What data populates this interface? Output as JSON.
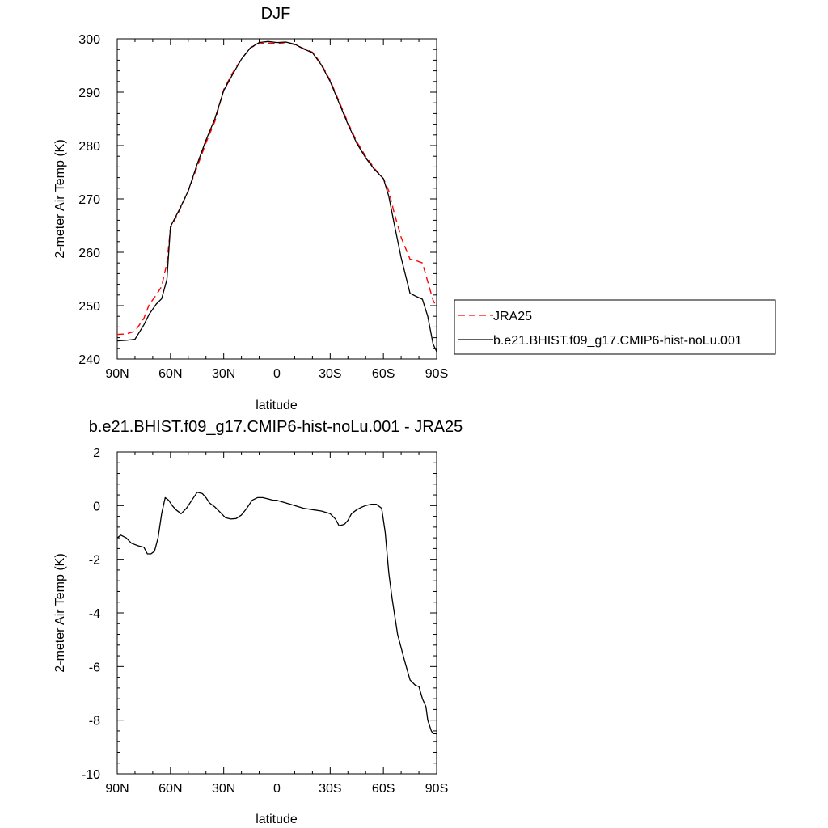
{
  "colors": {
    "model": "#000000",
    "obs": "#ff0000",
    "background": "#ffffff"
  },
  "chart_data": [
    {
      "type": "line",
      "title": "DJF",
      "xlabel": "latitude",
      "ylabel": "2-meter Air Temp (K)",
      "xlim": [
        -90,
        90
      ],
      "ylim": [
        240,
        300
      ],
      "xticks": [
        -90,
        -60,
        -30,
        0,
        30,
        60,
        90
      ],
      "xtick_labels": [
        "90N",
        "60N",
        "30N",
        "0",
        "30S",
        "60S",
        "90S"
      ],
      "yticks": [
        240,
        250,
        260,
        270,
        280,
        290,
        300
      ],
      "ytick_labels": [
        "240",
        "250",
        "260",
        "270",
        "280",
        "290",
        "300"
      ],
      "grid": false,
      "legend_position": "right",
      "series": [
        {
          "name": "JRA25",
          "style": "dashed",
          "color": "#ff0000",
          "x": [
            -90,
            -85,
            -80,
            -75,
            -72,
            -68,
            -65,
            -62,
            -60,
            -55,
            -50,
            -45,
            -40,
            -35,
            -30,
            -25,
            -20,
            -15,
            -10,
            -5,
            0,
            5,
            10,
            15,
            20,
            25,
            30,
            35,
            40,
            45,
            50,
            55,
            60,
            63,
            66,
            70,
            75,
            78,
            82,
            85,
            88,
            90
          ],
          "values": [
            244.6,
            244.7,
            245.2,
            247.6,
            250.2,
            252.0,
            253.6,
            258.0,
            264.5,
            267.8,
            271.5,
            276.0,
            280.5,
            284.5,
            290.5,
            293.6,
            296.2,
            298.3,
            299.1,
            299.2,
            299.1,
            299.3,
            298.9,
            298.2,
            297.5,
            295.3,
            292.2,
            288.3,
            284.3,
            280.7,
            278.0,
            275.7,
            273.8,
            271.5,
            267.5,
            262.8,
            258.7,
            258.5,
            258.0,
            254.5,
            251.0,
            249.8
          ]
        },
        {
          "name": "b.e21.BHIST.f09_g17.CMIP6-hist-noLu.001",
          "style": "solid",
          "color": "#000000",
          "x": [
            -90,
            -85,
            -80,
            -75,
            -72,
            -68,
            -65,
            -62,
            -60,
            -55,
            -50,
            -45,
            -40,
            -35,
            -30,
            -25,
            -20,
            -15,
            -10,
            -5,
            0,
            5,
            10,
            15,
            20,
            25,
            30,
            35,
            40,
            45,
            50,
            55,
            60,
            63,
            66,
            70,
            75,
            78,
            82,
            85,
            88,
            90
          ],
          "values": [
            243.4,
            243.5,
            243.7,
            246.4,
            248.4,
            250.3,
            251.3,
            254.9,
            264.8,
            268.0,
            271.5,
            276.5,
            281.0,
            285.0,
            290.3,
            293.3,
            296.2,
            298.3,
            299.3,
            299.5,
            299.3,
            299.4,
            299.0,
            298.1,
            297.4,
            295.1,
            292.0,
            288.0,
            284.0,
            280.4,
            277.7,
            275.5,
            273.8,
            270.5,
            265.5,
            259.0,
            252.3,
            251.8,
            251.2,
            248.0,
            242.8,
            241.4
          ]
        }
      ]
    },
    {
      "type": "line",
      "title": "b.e21.BHIST.f09_g17.CMIP6-hist-noLu.001 - JRA25",
      "xlabel": "latitude",
      "ylabel": "2-meter Air Temp (K)",
      "xlim": [
        -90,
        90
      ],
      "ylim": [
        -10,
        2
      ],
      "xticks": [
        -90,
        -60,
        -30,
        0,
        30,
        60,
        90
      ],
      "xtick_labels": [
        "90N",
        "60N",
        "30N",
        "0",
        "30S",
        "60S",
        "90S"
      ],
      "yticks": [
        -10,
        -8,
        -6,
        -4,
        -2,
        0,
        2
      ],
      "ytick_labels": [
        "-10",
        "-8",
        "-6",
        "-4",
        "-2",
        "0",
        "2"
      ],
      "grid": false,
      "series": [
        {
          "style": "solid",
          "color": "#000000",
          "x": [
            -90,
            -88,
            -85,
            -82,
            -78,
            -75,
            -73,
            -71,
            -69,
            -67,
            -65,
            -63,
            -61,
            -59,
            -57,
            -54,
            -51,
            -48,
            -45,
            -42,
            -40,
            -38,
            -35,
            -32,
            -29,
            -26,
            -23,
            -20,
            -17,
            -14,
            -11,
            -8,
            -5,
            -2,
            0,
            5,
            10,
            15,
            20,
            25,
            30,
            33,
            35,
            38,
            40,
            42,
            45,
            48,
            50,
            53,
            56,
            59,
            61,
            63,
            65,
            68,
            72,
            75,
            78,
            80,
            82,
            84,
            85,
            87,
            88,
            90
          ],
          "values": [
            -1.2,
            -1.1,
            -1.2,
            -1.4,
            -1.5,
            -1.55,
            -1.8,
            -1.8,
            -1.7,
            -1.2,
            -0.3,
            0.3,
            0.2,
            0.0,
            -0.15,
            -0.3,
            -0.1,
            0.2,
            0.5,
            0.45,
            0.3,
            0.1,
            -0.05,
            -0.25,
            -0.45,
            -0.5,
            -0.48,
            -0.35,
            -0.1,
            0.2,
            0.3,
            0.3,
            0.25,
            0.2,
            0.2,
            0.1,
            0.0,
            -0.1,
            -0.15,
            -0.2,
            -0.3,
            -0.5,
            -0.75,
            -0.7,
            -0.55,
            -0.3,
            -0.15,
            -0.05,
            0.0,
            0.05,
            0.05,
            -0.1,
            -1.0,
            -2.5,
            -3.5,
            -4.8,
            -5.8,
            -6.5,
            -6.7,
            -6.75,
            -7.2,
            -7.5,
            -8.0,
            -8.4,
            -8.5,
            -8.5
          ]
        }
      ]
    }
  ],
  "legend": {
    "items": [
      {
        "label": "JRA25",
        "style": "dashed",
        "color": "#ff0000"
      },
      {
        "label": "b.e21.BHIST.f09_g17.CMIP6-hist-noLu.001",
        "style": "solid",
        "color": "#000000"
      }
    ]
  }
}
